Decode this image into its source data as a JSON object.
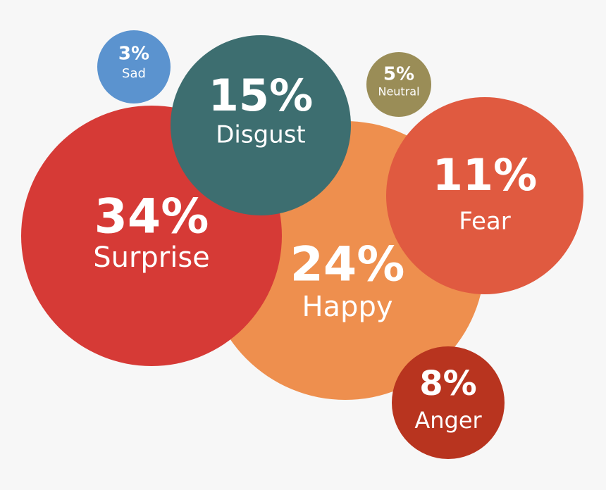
{
  "chart_data": {
    "type": "bubble",
    "categories": [
      "Happy",
      "Surprise",
      "Disgust",
      "Fear",
      "Sad",
      "Neutral",
      "Anger"
    ],
    "values": [
      24,
      34,
      15,
      11,
      3,
      5,
      8
    ],
    "value_labels": [
      "24%",
      "34%",
      "15%",
      "11%",
      "3%",
      "5%",
      "8%"
    ],
    "colors": [
      "#ee8f4e",
      "#d63a36",
      "#3d6e70",
      "#e05a40",
      "#5b93cf",
      "#9a8d57",
      "#b8341f"
    ]
  }
}
